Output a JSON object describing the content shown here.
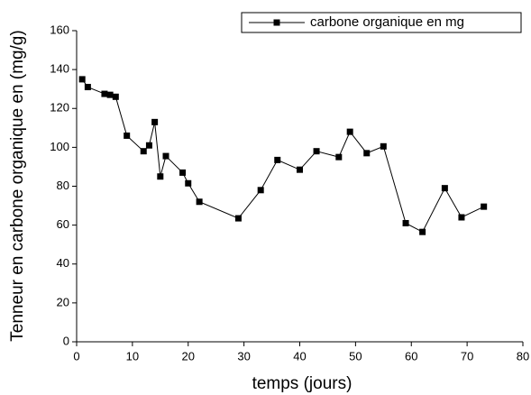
{
  "chart_data": {
    "type": "line",
    "x_label": "temps (jours)",
    "y_label": "Tenneur en carbone organique en (mg/g)",
    "xlim": [
      0,
      80
    ],
    "xticks": [
      0,
      10,
      20,
      30,
      40,
      50,
      60,
      70,
      80
    ],
    "ylim": [
      0,
      160
    ],
    "yticks": [
      0,
      20,
      40,
      60,
      80,
      100,
      120,
      140,
      160
    ],
    "legend": "top-right",
    "series": [
      {
        "name": "carbone organique en mg",
        "color": "#000000",
        "x": [
          1,
          2,
          5,
          6,
          7,
          9,
          12,
          13,
          14,
          15,
          16,
          19,
          20,
          22,
          29,
          33,
          36,
          40,
          43,
          47,
          49,
          52,
          55,
          59,
          62,
          66,
          69,
          73
        ],
        "values": [
          135,
          131,
          127.5,
          127,
          126,
          106,
          98,
          101,
          113,
          85,
          95.5,
          87,
          81.5,
          72,
          63.5,
          78,
          93.5,
          88.5,
          98,
          95,
          108,
          97,
          100.5,
          61,
          56.5,
          79,
          64,
          69.5
        ]
      }
    ]
  }
}
